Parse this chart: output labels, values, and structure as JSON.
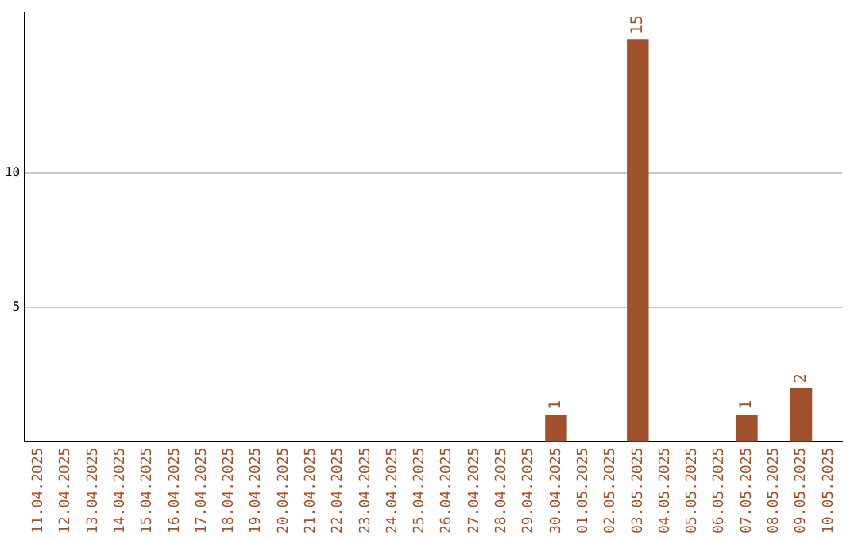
{
  "chart_data": {
    "type": "bar",
    "categories": [
      "11.04.2025",
      "12.04.2025",
      "13.04.2025",
      "14.04.2025",
      "15.04.2025",
      "16.04.2025",
      "17.04.2025",
      "18.04.2025",
      "19.04.2025",
      "20.04.2025",
      "21.04.2025",
      "22.04.2025",
      "23.04.2025",
      "24.04.2025",
      "25.04.2025",
      "26.04.2025",
      "27.04.2025",
      "28.04.2025",
      "29.04.2025",
      "30.04.2025",
      "01.05.2025",
      "02.05.2025",
      "03.05.2025",
      "04.05.2025",
      "05.05.2025",
      "06.05.2025",
      "07.05.2025",
      "08.05.2025",
      "09.05.2025",
      "10.05.2025"
    ],
    "values": [
      0,
      0,
      0,
      0,
      0,
      0,
      0,
      0,
      0,
      0,
      0,
      0,
      0,
      0,
      0,
      0,
      0,
      0,
      0,
      1,
      0,
      0,
      15,
      0,
      0,
      0,
      1,
      0,
      2,
      0
    ],
    "value_labels": [
      null,
      null,
      null,
      null,
      null,
      null,
      null,
      null,
      null,
      null,
      null,
      null,
      null,
      null,
      null,
      null,
      null,
      null,
      null,
      "1",
      null,
      null,
      "15",
      null,
      null,
      null,
      "1",
      null,
      "2",
      null
    ],
    "color": "#a0522d",
    "ylim": [
      0,
      16
    ],
    "yticks": [
      5,
      10
    ],
    "grid": "y",
    "legend": false
  }
}
